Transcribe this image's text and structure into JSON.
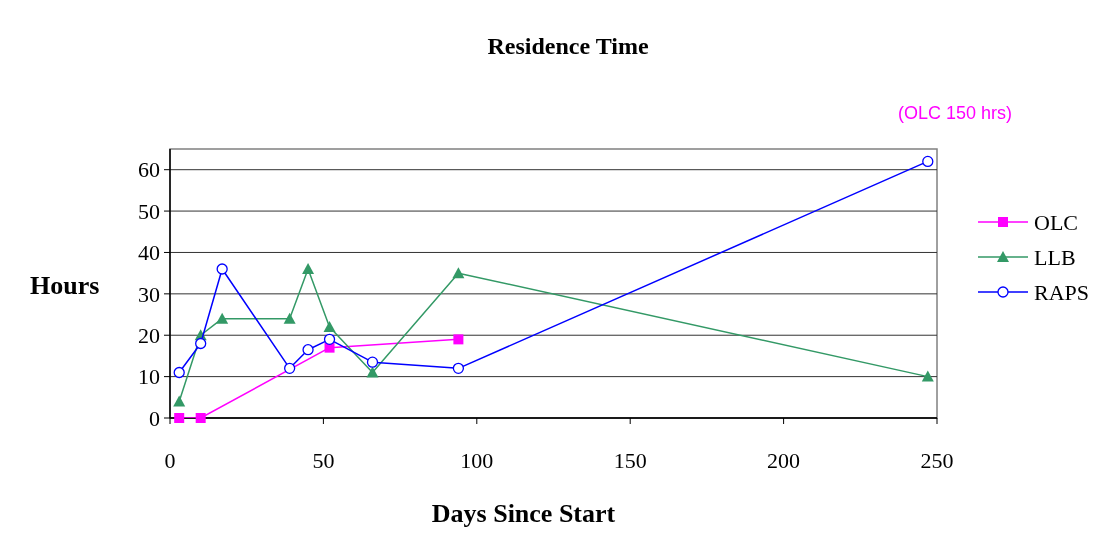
{
  "chart_data": {
    "type": "line",
    "title": "Residence Time",
    "xlabel": "Days Since Start",
    "ylabel": "Hours",
    "annotations": [
      "(OLC 150 hrs)"
    ],
    "xlim": [
      0,
      250
    ],
    "xticks": [
      0,
      50,
      100,
      150,
      200,
      250
    ],
    "ylim": [
      0,
      65
    ],
    "yticks": [
      0,
      10,
      20,
      30,
      40,
      50,
      60
    ],
    "grid": "y",
    "legend": "right",
    "series": [
      {
        "name": "OLC",
        "color": "#ff00ff",
        "marker": "square",
        "x": [
          3,
          10,
          52,
          94
        ],
        "values": [
          0,
          0,
          17,
          19
        ]
      },
      {
        "name": "LLB",
        "color": "#339966",
        "marker": "triangle",
        "x": [
          3,
          10,
          17,
          39,
          45,
          52,
          66,
          94,
          247
        ],
        "values": [
          4,
          20,
          24,
          24,
          36,
          22,
          11,
          35,
          10
        ]
      },
      {
        "name": "RAPS",
        "color": "#0000ff",
        "marker": "circle",
        "x": [
          3,
          10,
          17,
          39,
          45,
          52,
          66,
          94,
          247
        ],
        "values": [
          11,
          18,
          36,
          12,
          16.5,
          19,
          13.5,
          12,
          62
        ]
      }
    ]
  }
}
